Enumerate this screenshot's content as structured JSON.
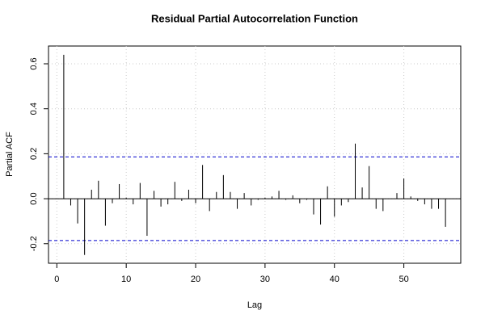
{
  "chart_data": {
    "type": "pacf",
    "title": "Residual Partial Autocorrelation Function",
    "x_label": "Lag",
    "y_label": "Partial ACF",
    "x": [
      1,
      2,
      3,
      4,
      5,
      6,
      7,
      8,
      9,
      10,
      11,
      12,
      13,
      14,
      15,
      16,
      17,
      18,
      19,
      20,
      21,
      22,
      23,
      24,
      25,
      26,
      27,
      28,
      29,
      30,
      31,
      32,
      33,
      34,
      35,
      36,
      37,
      38,
      39,
      40,
      41,
      42,
      43,
      44,
      45,
      46,
      47,
      48,
      49,
      50,
      51,
      52,
      53,
      54,
      55,
      56
    ],
    "values": [
      0.64,
      -0.03,
      -0.11,
      -0.25,
      0.04,
      0.08,
      -0.12,
      -0.02,
      0.065,
      0.005,
      -0.025,
      0.07,
      -0.165,
      0.035,
      -0.035,
      -0.025,
      0.075,
      -0.01,
      0.04,
      -0.02,
      0.15,
      -0.055,
      0.03,
      0.105,
      0.03,
      -0.045,
      0.025,
      -0.03,
      -0.005,
      0.005,
      0.01,
      0.035,
      -0.005,
      0.015,
      -0.02,
      -0.005,
      -0.07,
      -0.115,
      0.055,
      -0.08,
      -0.03,
      -0.015,
      0.245,
      0.05,
      0.145,
      -0.045,
      -0.055,
      0.0,
      0.025,
      0.09,
      0.01,
      -0.01,
      -0.025,
      -0.045,
      -0.045,
      -0.125
    ],
    "color": "#000000",
    "conf_limits": [
      0.186,
      -0.186
    ],
    "conf_color": "#0000cc",
    "xlim": [
      -1.2,
      58.2
    ],
    "ylim": [
      -0.287,
      0.679
    ],
    "xticks": [
      0,
      10,
      20,
      30,
      40,
      50
    ],
    "yticks": [
      -0.2,
      {
        "value": 0,
        "label": "0.0"
      },
      0.2,
      0.4,
      0.6
    ],
    "grid": true
  }
}
